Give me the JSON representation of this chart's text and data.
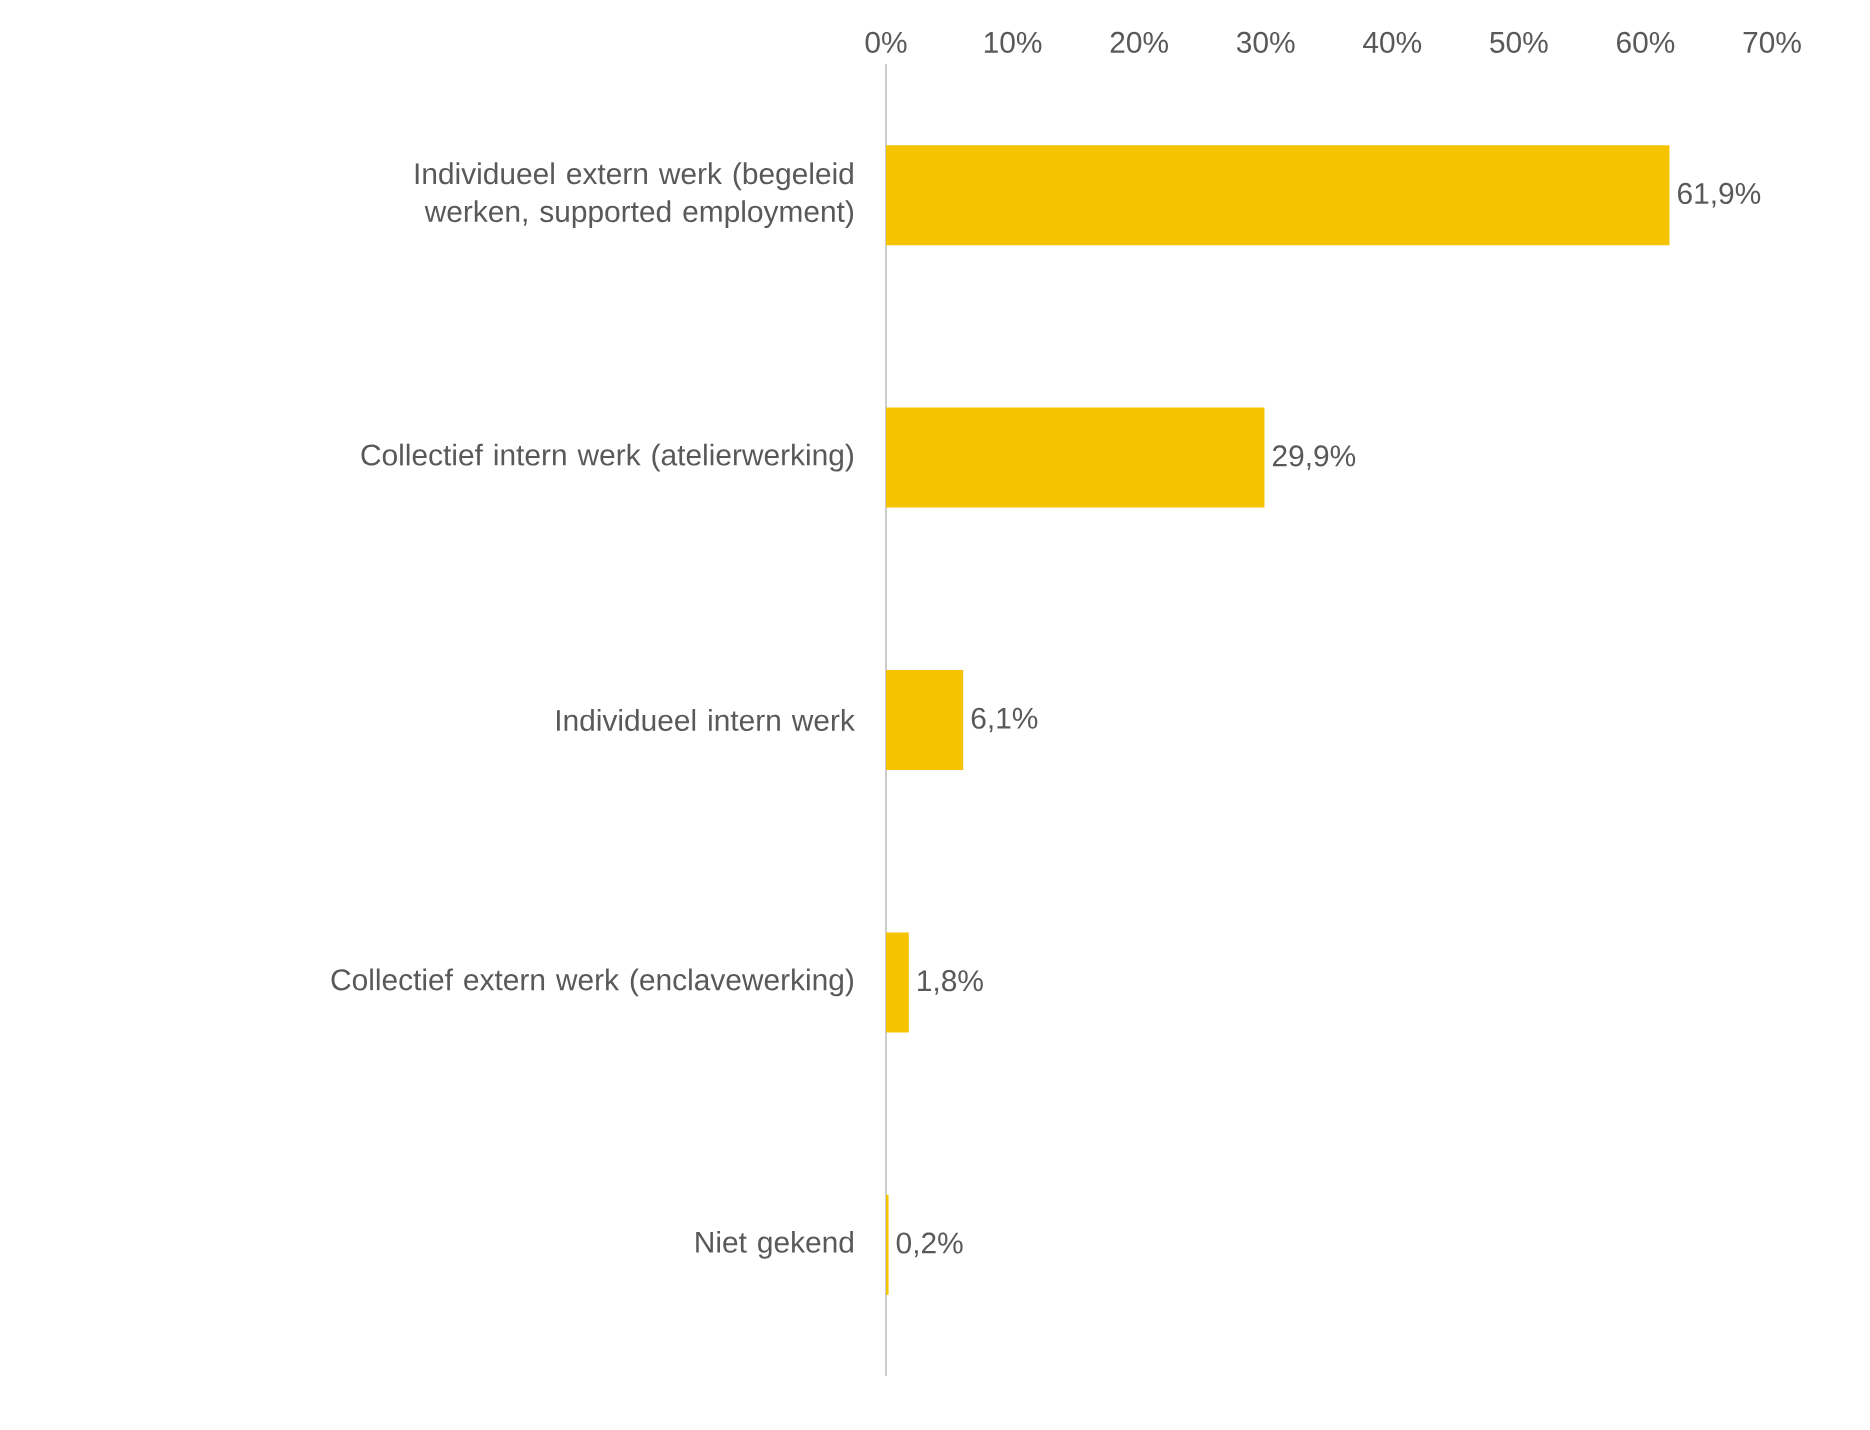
{
  "chart_data": {
    "type": "bar",
    "orientation": "horizontal",
    "categories": [
      "Individueel extern werk (begeleid werken, supported employment)",
      "Collectief intern werk (atelierwerking)",
      "Individueel intern werk",
      "Collectief extern werk (enclavewerking)",
      "Niet gekend"
    ],
    "values": [
      61.9,
      29.9,
      6.1,
      1.8,
      0.2
    ],
    "value_labels": [
      "61,9%",
      "29,9%",
      "6,1%",
      "1,8%",
      "0,2%"
    ],
    "color": "#f5c300",
    "xlim": [
      0,
      70
    ],
    "xticks": [
      {
        "value": 0,
        "label": "0%"
      },
      {
        "value": 10,
        "label": "10%"
      },
      {
        "value": 20,
        "label": "20%"
      },
      {
        "value": 30,
        "label": "30%"
      },
      {
        "value": 40,
        "label": "40%"
      },
      {
        "value": 50,
        "label": "50%"
      },
      {
        "value": 60,
        "label": "60%"
      },
      {
        "value": 70,
        "label": "70%"
      }
    ],
    "grid": false
  }
}
